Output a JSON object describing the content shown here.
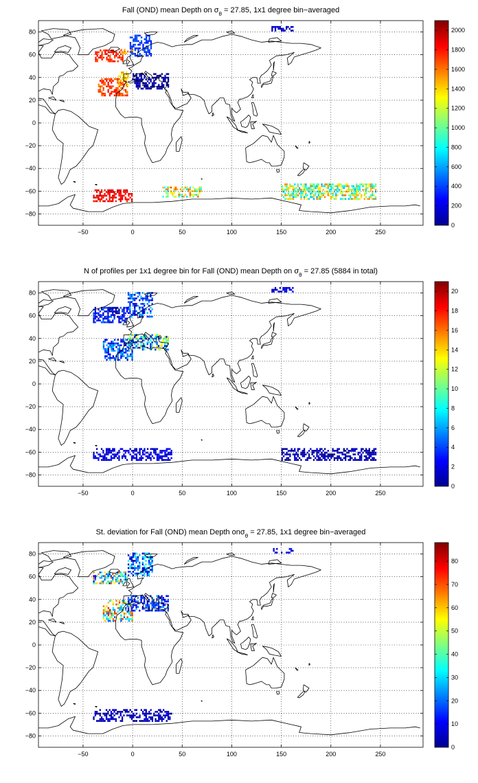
{
  "chart_data": [
    {
      "type": "heatmap",
      "title_pre": "Fall (OND) mean Depth on σ",
      "title_sub": "θ",
      "title_post": " = 27.85, 1x1 degree bin−averaged",
      "x_ticks": [
        -50,
        0,
        50,
        100,
        150,
        200,
        250
      ],
      "y_ticks": [
        80,
        60,
        40,
        20,
        0,
        -20,
        -40,
        -60,
        -80
      ],
      "xlim": [
        -95,
        293
      ],
      "ylim": [
        -90,
        90
      ],
      "grid": true,
      "colorbar": {
        "ticks": [
          0,
          200,
          400,
          600,
          800,
          1000,
          1200,
          1400,
          1600,
          1800,
          2000
        ],
        "range": [
          0,
          2100
        ]
      },
      "clusters": [
        {
          "lon": [
            -38,
            -10
          ],
          "lat": [
            55,
            66
          ],
          "value": 1750,
          "spread": 120
        },
        {
          "lon": [
            -12,
            0
          ],
          "lat": [
            62,
            66
          ],
          "value": 1500,
          "spread": 150
        },
        {
          "lon": [
            -3,
            18
          ],
          "lat": [
            60,
            78
          ],
          "value": 380,
          "spread": 80
        },
        {
          "lon": [
            -35,
            -5
          ],
          "lat": [
            25,
            40
          ],
          "value": 1700,
          "spread": 150
        },
        {
          "lon": [
            -15,
            -5
          ],
          "lat": [
            34,
            46
          ],
          "value": 1400,
          "spread": 180
        },
        {
          "lon": [
            0,
            36
          ],
          "lat": [
            31,
            45
          ],
          "value": 90,
          "spread": 60
        },
        {
          "lon": [
            140,
            162
          ],
          "lat": [
            82,
            86
          ],
          "value": 150,
          "spread": 60
        },
        {
          "lon": [
            -40,
            0
          ],
          "lat": [
            -68,
            -58
          ],
          "value": 1850,
          "spread": 100
        },
        {
          "lon": [
            30,
            70
          ],
          "lat": [
            -64,
            -55
          ],
          "value": 1200,
          "spread": 500
        },
        {
          "lon": [
            150,
            245
          ],
          "lat": [
            -66,
            -52
          ],
          "value": 1100,
          "spread": 500
        }
      ]
    },
    {
      "type": "heatmap",
      "title_pre": "N of profiles per 1x1 degree bin for Fall (OND) mean Depth on σ",
      "title_sub": "θ",
      "title_post": " = 27.85 (5884 in total)",
      "x_ticks": [
        -50,
        0,
        50,
        100,
        150,
        200,
        250
      ],
      "y_ticks": [
        80,
        60,
        40,
        20,
        0,
        -20,
        -40,
        -60,
        -80
      ],
      "xlim": [
        -95,
        293
      ],
      "ylim": [
        -90,
        90
      ],
      "grid": true,
      "colorbar": {
        "ticks": [
          0,
          2,
          4,
          6,
          8,
          10,
          12,
          14,
          16,
          18,
          20
        ],
        "range": [
          0,
          21
        ]
      },
      "clusters": [
        {
          "lon": [
            -40,
            -5
          ],
          "lat": [
            55,
            68
          ],
          "value": 3,
          "spread": 2
        },
        {
          "lon": [
            -5,
            20
          ],
          "lat": [
            60,
            82
          ],
          "value": 4,
          "spread": 3
        },
        {
          "lon": [
            -30,
            0
          ],
          "lat": [
            22,
            40
          ],
          "value": 4,
          "spread": 3
        },
        {
          "lon": [
            -5,
            36
          ],
          "lat": [
            31,
            45
          ],
          "value": 8,
          "spread": 6
        },
        {
          "lon": [
            140,
            162
          ],
          "lat": [
            82,
            86
          ],
          "value": 2,
          "spread": 1
        },
        {
          "lon": [
            -40,
            40
          ],
          "lat": [
            -66,
            -55
          ],
          "value": 2,
          "spread": 1
        },
        {
          "lon": [
            150,
            245
          ],
          "lat": [
            -66,
            -55
          ],
          "value": 1,
          "spread": 1
        }
      ]
    },
    {
      "type": "heatmap",
      "title_pre": "St. deviation for Fall (OND) mean Depth onσ",
      "title_sub": "θ",
      "title_post": " = 27.85, 1x1 degree bin−averaged",
      "x_ticks": [
        -50,
        0,
        50,
        100,
        150,
        200,
        250
      ],
      "y_ticks": [
        80,
        60,
        40,
        20,
        0,
        -20,
        -40,
        -60,
        -80
      ],
      "xlim": [
        -95,
        293
      ],
      "ylim": [
        -90,
        90
      ],
      "grid": true,
      "colorbar": {
        "ticks": [
          0,
          10,
          20,
          30,
          40,
          50,
          60,
          70,
          80
        ],
        "range": [
          0,
          88
        ]
      },
      "clusters": [
        {
          "lon": [
            -40,
            -5
          ],
          "lat": [
            55,
            66
          ],
          "value": 40,
          "spread": 30
        },
        {
          "lon": [
            -5,
            20
          ],
          "lat": [
            62,
            82
          ],
          "value": 20,
          "spread": 18
        },
        {
          "lon": [
            -30,
            0
          ],
          "lat": [
            22,
            40
          ],
          "value": 45,
          "spread": 30
        },
        {
          "lon": [
            -5,
            36
          ],
          "lat": [
            31,
            45
          ],
          "value": 15,
          "spread": 10
        },
        {
          "lon": [
            140,
            162
          ],
          "lat": [
            82,
            86
          ],
          "value": 10,
          "spread": 5
        },
        {
          "lon": [
            -40,
            40
          ],
          "lat": [
            -66,
            -55
          ],
          "value": 5,
          "spread": 4
        }
      ]
    }
  ]
}
